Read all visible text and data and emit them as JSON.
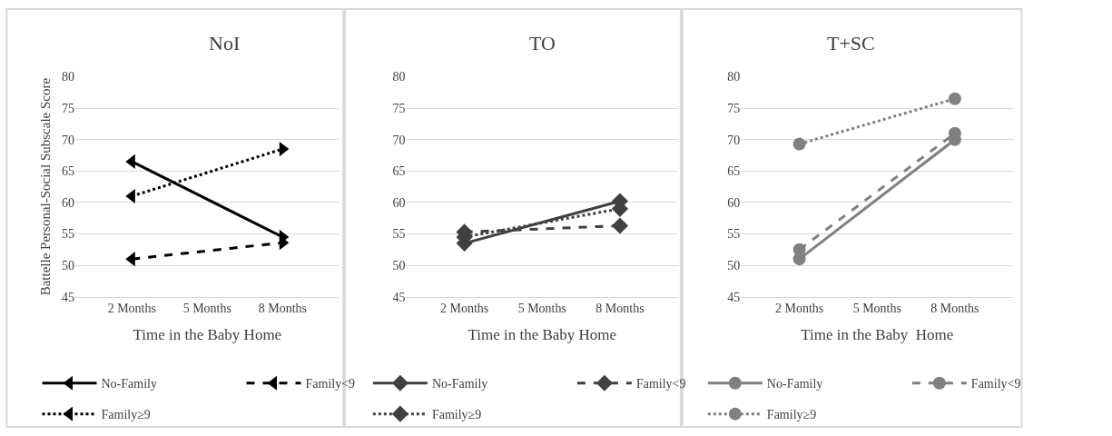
{
  "chart_data": [
    {
      "type": "line",
      "title": "NoI",
      "xlabel": "Time in the Baby Home",
      "ylabel": "Battelle Personal-Social Subscale Score",
      "categories": [
        "2 Months",
        "5 Months",
        "8 Months"
      ],
      "ylim": [
        45,
        80
      ],
      "yticks": [
        45,
        50,
        55,
        60,
        65,
        70,
        75,
        80
      ],
      "grid": "y",
      "legend": "bottom",
      "marker": "triangle",
      "series": [
        {
          "name": "No-Family",
          "color": "#000000",
          "line_style": "solid",
          "values": [
            66.5,
            null,
            54.5
          ]
        },
        {
          "name": "Family<9",
          "color": "#000000",
          "line_style": "dashed",
          "values": [
            51,
            null,
            53.6
          ]
        },
        {
          "name": "Family≥9",
          "color": "#000000",
          "line_style": "dotted",
          "values": [
            61,
            null,
            68.5
          ]
        }
      ]
    },
    {
      "type": "line",
      "title": "TO",
      "xlabel": "Time in the Baby Home",
      "categories": [
        "2 Months",
        "5 Months",
        "8 Months"
      ],
      "ylim": [
        45,
        80
      ],
      "yticks": [
        45,
        50,
        55,
        60,
        65,
        70,
        75,
        80
      ],
      "grid": "y",
      "legend": "bottom",
      "marker": "diamond",
      "series": [
        {
          "name": "No-Family",
          "color": "#404040",
          "line_style": "solid",
          "values": [
            53.5,
            null,
            60.2
          ]
        },
        {
          "name": "Family<9",
          "color": "#404040",
          "line_style": "dashed",
          "values": [
            55.3,
            null,
            56.3
          ]
        },
        {
          "name": "Family≥9",
          "color": "#404040",
          "line_style": "dotted",
          "values": [
            54.5,
            null,
            59
          ]
        }
      ]
    },
    {
      "type": "line",
      "title": "T+SC",
      "xlabel": "Time in the Baby  Home",
      "categories": [
        "2 Months",
        "5 Months",
        "8 Months"
      ],
      "ylim": [
        45,
        80
      ],
      "yticks": [
        45,
        50,
        55,
        60,
        65,
        70,
        75,
        80
      ],
      "grid": "y",
      "legend": "bottom",
      "marker": "circle",
      "series": [
        {
          "name": "No-Family",
          "color": "#808080",
          "line_style": "solid",
          "values": [
            51,
            null,
            70
          ]
        },
        {
          "name": "Family<9",
          "color": "#808080",
          "line_style": "dashed",
          "values": [
            52.5,
            null,
            71
          ]
        },
        {
          "name": "Family≥9",
          "color": "#808080",
          "line_style": "dotted",
          "values": [
            69.3,
            null,
            76.5
          ]
        }
      ]
    }
  ]
}
